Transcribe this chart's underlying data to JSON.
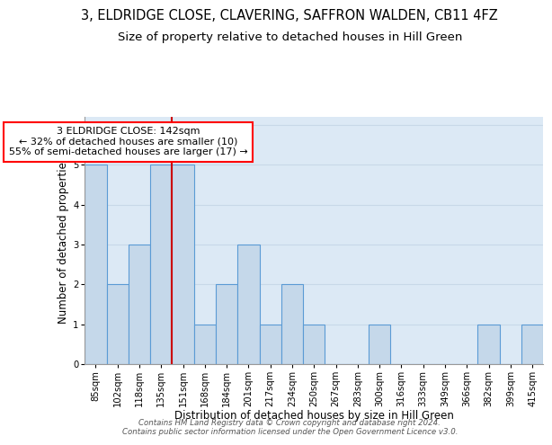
{
  "title": "3, ELDRIDGE CLOSE, CLAVERING, SAFFRON WALDEN, CB11 4FZ",
  "subtitle": "Size of property relative to detached houses in Hill Green",
  "xlabel": "Distribution of detached houses by size in Hill Green",
  "ylabel": "Number of detached properties",
  "categories": [
    "85sqm",
    "102sqm",
    "118sqm",
    "135sqm",
    "151sqm",
    "168sqm",
    "184sqm",
    "201sqm",
    "217sqm",
    "234sqm",
    "250sqm",
    "267sqm",
    "283sqm",
    "300sqm",
    "316sqm",
    "333sqm",
    "349sqm",
    "366sqm",
    "382sqm",
    "399sqm",
    "415sqm"
  ],
  "values": [
    5,
    2,
    3,
    5,
    5,
    1,
    2,
    3,
    1,
    2,
    1,
    0,
    0,
    1,
    0,
    0,
    0,
    0,
    1,
    0,
    1
  ],
  "bar_color": "#c5d8ea",
  "bar_edge_color": "#5b9bd5",
  "bar_edge_width": 0.8,
  "red_line_x": 3.5,
  "annotation_text": "3 ELDRIDGE CLOSE: 142sqm\n← 32% of detached houses are smaller (10)\n55% of semi-detached houses are larger (17) →",
  "annotation_box_color": "white",
  "annotation_box_edge_color": "red",
  "annotation_fontsize": 8,
  "red_line_color": "#cc0000",
  "ylim": [
    0,
    6.2
  ],
  "yticks": [
    0,
    1,
    2,
    3,
    4,
    5,
    6
  ],
  "grid_color": "#c8d8e8",
  "background_color": "#dce9f5",
  "footer_text": "Contains HM Land Registry data © Crown copyright and database right 2024.\nContains public sector information licensed under the Open Government Licence v3.0.",
  "title_fontsize": 10.5,
  "subtitle_fontsize": 9.5,
  "xlabel_fontsize": 8.5,
  "ylabel_fontsize": 8.5,
  "tick_fontsize": 7.2,
  "footer_fontsize": 6.2
}
